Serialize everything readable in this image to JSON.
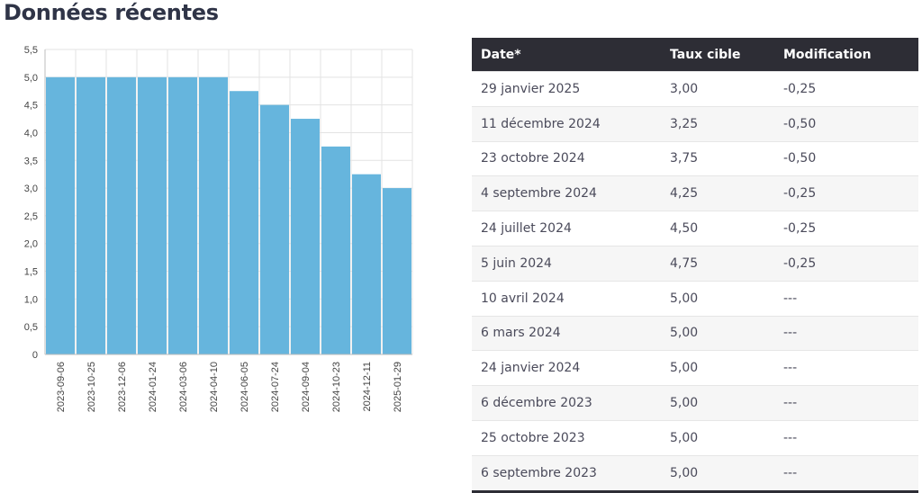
{
  "page": {
    "title": "Données récentes"
  },
  "table": {
    "headers": {
      "date": "Date*",
      "rate": "Taux cible",
      "change": "Modification"
    },
    "rows": [
      {
        "date": "29 janvier 2025",
        "rate": "3,00",
        "change": "-0,25"
      },
      {
        "date": "11 décembre 2024",
        "rate": "3,25",
        "change": "-0,50"
      },
      {
        "date": "23 octobre 2024",
        "rate": "3,75",
        "change": "-0,50"
      },
      {
        "date": "4 septembre 2024",
        "rate": "4,25",
        "change": "-0,25"
      },
      {
        "date": "24 juillet 2024",
        "rate": "4,50",
        "change": "-0,25"
      },
      {
        "date": "5 juin 2024",
        "rate": "4,75",
        "change": "-0,25"
      },
      {
        "date": "10 avril 2024",
        "rate": "5,00",
        "change": "---"
      },
      {
        "date": "6 mars 2024",
        "rate": "5,00",
        "change": "---"
      },
      {
        "date": "24 janvier 2024",
        "rate": "5,00",
        "change": "---"
      },
      {
        "date": "6 décembre 2023",
        "rate": "5,00",
        "change": "---"
      },
      {
        "date": "25 octobre 2023",
        "rate": "5,00",
        "change": "---"
      },
      {
        "date": "6 septembre 2023",
        "rate": "5,00",
        "change": "---"
      }
    ]
  },
  "chart_data": {
    "type": "bar",
    "categories": [
      "2023-09-06",
      "2023-10-25",
      "2023-12-06",
      "2024-01-24",
      "2024-03-06",
      "2024-04-10",
      "2024-06-05",
      "2024-07-24",
      "2024-09-04",
      "2024-10-23",
      "2024-12-11",
      "2025-01-29"
    ],
    "values": [
      5.0,
      5.0,
      5.0,
      5.0,
      5.0,
      5.0,
      4.75,
      4.5,
      4.25,
      3.75,
      3.25,
      3.0
    ],
    "yticks": [
      "0",
      "0,5",
      "1,0",
      "1,5",
      "2,0",
      "2,5",
      "3,0",
      "3,5",
      "4,0",
      "4,5",
      "5,0",
      "5,5"
    ],
    "ylim": [
      0,
      5.5
    ],
    "grid": true,
    "bar_color": "#66b5dd",
    "title": "",
    "xlabel": "",
    "ylabel": ""
  }
}
